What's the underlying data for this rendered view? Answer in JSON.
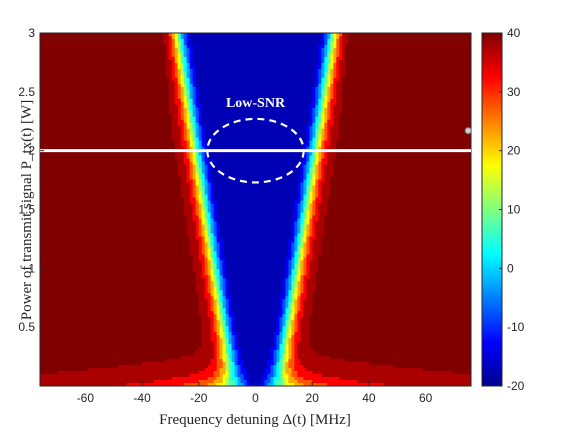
{
  "chart_data": {
    "type": "heatmap",
    "title": "",
    "xlabel": "Frequency detuning Δ(t) [MHz]",
    "ylabel": "Power of transmit signal P_tx(t) [W]",
    "xlim": [
      -76,
      76
    ],
    "ylim": [
      0,
      3
    ],
    "xticks": [
      -60,
      -40,
      -20,
      0,
      20,
      40,
      60
    ],
    "yticks": [
      0.5,
      1,
      1.5,
      2,
      2.5,
      3
    ],
    "ytick_labels": [
      "0.5",
      "1",
      "1.5",
      "2",
      "2.5",
      "3"
    ],
    "colorbar": {
      "range": [
        -20,
        40
      ],
      "ticks": [
        -20,
        -10,
        0,
        10,
        20,
        30,
        40
      ],
      "colormap": "jet"
    },
    "contour_levels": [
      -20,
      -15,
      -10,
      -5,
      0,
      5,
      10,
      15,
      20,
      25,
      30,
      35,
      40
    ],
    "reference_line": {
      "y": 2,
      "color": "#ffffff"
    },
    "marker": {
      "x": 75,
      "y": 2.17,
      "color": "#cccccc"
    },
    "annotation": {
      "text": "Low-SNR",
      "circle_center": [
        0,
        2
      ],
      "circle_radius_x_MHz": 17,
      "circle_radius_y_W": 0.27
    },
    "grid": false
  }
}
